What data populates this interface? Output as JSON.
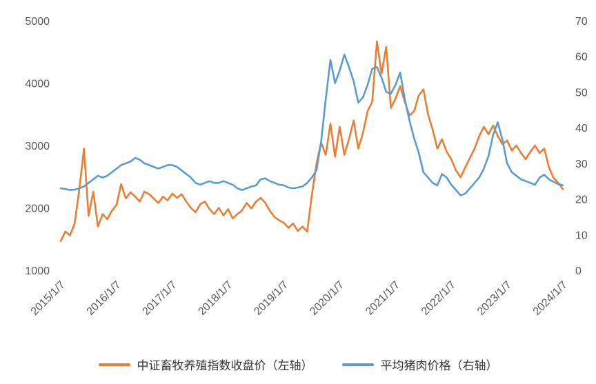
{
  "chart_data": {
    "type": "line",
    "title": "",
    "xlabel": "",
    "ylabel_left": "",
    "ylabel_right": "",
    "grid": false,
    "legend_position": "bottom",
    "text_color": "#595959",
    "x_axis": {
      "tick_labels": [
        "2015/1/7",
        "2016/1/7",
        "2017/1/7",
        "2018/1/7",
        "2019/1/7",
        "2020/1/7",
        "2021/1/7",
        "2022/1/7",
        "2023/1/7",
        "2024/1/7"
      ],
      "points_per_interval": 12,
      "sampling": "monthly points from 2015/1 to 2024/1"
    },
    "y_axis_left": {
      "min": 1000,
      "max": 5000,
      "ticks": [
        1000,
        2000,
        3000,
        4000,
        5000
      ]
    },
    "y_axis_right": {
      "min": 0,
      "max": 70,
      "ticks": [
        0,
        10,
        20,
        30,
        40,
        50,
        60,
        70
      ]
    },
    "series": [
      {
        "name": "中证畜牧养殖指数收盘价（左轴）",
        "axis": "left",
        "color": "#ED7D31",
        "values": [
          1470,
          1620,
          1560,
          1750,
          2300,
          2950,
          1870,
          2260,
          1700,
          1900,
          1820,
          1950,
          2050,
          2380,
          2150,
          2250,
          2180,
          2100,
          2260,
          2220,
          2150,
          2080,
          2180,
          2120,
          2230,
          2160,
          2220,
          2100,
          2000,
          1930,
          2060,
          2100,
          1980,
          1900,
          2000,
          1880,
          1980,
          1830,
          1900,
          1960,
          2080,
          1990,
          2100,
          2160,
          2080,
          1950,
          1850,
          1800,
          1760,
          1680,
          1750,
          1630,
          1700,
          1620,
          2200,
          2700,
          3050,
          2850,
          3350,
          2820,
          3300,
          2850,
          3100,
          3400,
          2950,
          3200,
          3550,
          3700,
          4670,
          4150,
          4580,
          3600,
          3750,
          3950,
          3700,
          3480,
          3550,
          3800,
          3900,
          3500,
          3250,
          2950,
          3100,
          2900,
          2780,
          2600,
          2490,
          2650,
          2800,
          2950,
          3150,
          3300,
          3180,
          3320,
          3150,
          3020,
          3080,
          2920,
          3000,
          2880,
          2780,
          2900,
          3000,
          2880,
          2950,
          2650,
          2480,
          2400,
          2300
        ]
      },
      {
        "name": "平均猪肉价格（右轴）",
        "axis": "right",
        "color": "#5B9BD5",
        "values": [
          23.0,
          22.8,
          22.5,
          22.6,
          23.0,
          23.5,
          24.5,
          25.5,
          26.5,
          26.0,
          26.5,
          27.5,
          28.5,
          29.5,
          30.0,
          30.5,
          31.5,
          31.0,
          30.0,
          29.5,
          29.0,
          28.5,
          29.0,
          29.5,
          29.5,
          29.0,
          28.0,
          27.0,
          26.0,
          24.5,
          24.0,
          24.5,
          25.0,
          24.5,
          24.5,
          25.0,
          24.5,
          24.0,
          23.0,
          22.5,
          23.0,
          23.5,
          23.8,
          25.5,
          25.8,
          25.0,
          24.5,
          24.0,
          23.8,
          23.2,
          23.0,
          23.2,
          23.5,
          24.5,
          26.0,
          28.0,
          36.0,
          48.0,
          59.0,
          52.5,
          56.0,
          60.5,
          57.0,
          53.0,
          47.0,
          48.5,
          52.0,
          56.5,
          57.0,
          54.0,
          50.0,
          49.5,
          52.0,
          55.5,
          48.0,
          42.0,
          37.0,
          33.0,
          27.5,
          26.0,
          24.5,
          23.8,
          27.0,
          26.0,
          24.0,
          22.5,
          21.0,
          21.5,
          23.0,
          24.5,
          26.0,
          28.5,
          32.0,
          38.0,
          41.5,
          36.5,
          30.0,
          27.5,
          26.5,
          25.5,
          25.0,
          24.5,
          24.0,
          26.0,
          26.8,
          25.5,
          24.8,
          24.2,
          23.8
        ]
      }
    ]
  }
}
